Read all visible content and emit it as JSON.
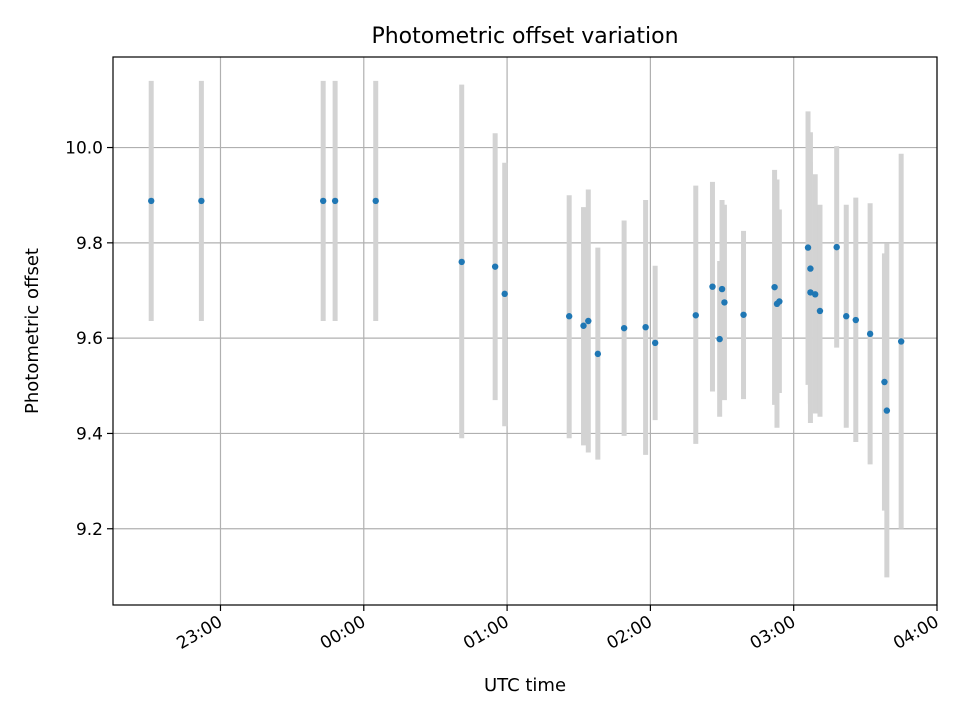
{
  "chart_data": {
    "type": "scatter",
    "title": "Photometric offset variation",
    "xlabel": "UTC time",
    "ylabel": "Photometric offset",
    "grid": true,
    "xlim": [
      "22:15",
      "04:00"
    ],
    "ylim": [
      9.04,
      10.19
    ],
    "xticks": [
      "23:00",
      "00:00",
      "01:00",
      "02:00",
      "03:00",
      "04:00"
    ],
    "yticks": [
      "9.2",
      "9.4",
      "9.6",
      "9.8",
      "10.0"
    ],
    "colors": {
      "marker": "#1f77b4",
      "errorbar": "#d3d3d3",
      "grid": "#b0b0b0"
    },
    "series": [
      {
        "points": [
          {
            "x": "22:31",
            "y": 9.888,
            "lo": 9.636,
            "hi": 10.14
          },
          {
            "x": "22:52",
            "y": 9.888,
            "lo": 9.636,
            "hi": 10.14
          },
          {
            "x": "23:43",
            "y": 9.888,
            "lo": 9.636,
            "hi": 10.14
          },
          {
            "x": "23:48",
            "y": 9.888,
            "lo": 9.636,
            "hi": 10.14
          },
          {
            "x": "00:05",
            "y": 9.888,
            "lo": 9.636,
            "hi": 10.14
          },
          {
            "x": "00:41",
            "y": 9.76,
            "lo": 9.39,
            "hi": 10.132
          },
          {
            "x": "00:55",
            "y": 9.75,
            "lo": 9.47,
            "hi": 10.03
          },
          {
            "x": "00:59",
            "y": 9.693,
            "lo": 9.415,
            "hi": 9.968
          },
          {
            "x": "01:26",
            "y": 9.646,
            "lo": 9.39,
            "hi": 9.9
          },
          {
            "x": "01:32",
            "y": 9.626,
            "lo": 9.375,
            "hi": 9.875
          },
          {
            "x": "01:34",
            "y": 9.636,
            "lo": 9.36,
            "hi": 9.912
          },
          {
            "x": "01:38",
            "y": 9.567,
            "lo": 9.345,
            "hi": 9.79
          },
          {
            "x": "01:49",
            "y": 9.621,
            "lo": 9.395,
            "hi": 9.847
          },
          {
            "x": "01:58",
            "y": 9.623,
            "lo": 9.355,
            "hi": 9.89
          },
          {
            "x": "02:02",
            "y": 9.59,
            "lo": 9.428,
            "hi": 9.752
          },
          {
            "x": "02:19",
            "y": 9.648,
            "lo": 9.378,
            "hi": 9.92
          },
          {
            "x": "02:26",
            "y": 9.708,
            "lo": 9.488,
            "hi": 9.928
          },
          {
            "x": "02:29",
            "y": 9.598,
            "lo": 9.435,
            "hi": 9.762
          },
          {
            "x": "02:30",
            "y": 9.703,
            "lo": 9.478,
            "hi": 9.89
          },
          {
            "x": "02:31",
            "y": 9.675,
            "lo": 9.47,
            "hi": 9.88
          },
          {
            "x": "02:39",
            "y": 9.649,
            "lo": 9.472,
            "hi": 9.825
          },
          {
            "x": "02:52",
            "y": 9.707,
            "lo": 9.46,
            "hi": 9.953
          },
          {
            "x": "02:53",
            "y": 9.672,
            "lo": 9.412,
            "hi": 9.933
          },
          {
            "x": "02:54",
            "y": 9.677,
            "lo": 9.485,
            "hi": 9.87
          },
          {
            "x": "03:06",
            "y": 9.79,
            "lo": 9.502,
            "hi": 10.076
          },
          {
            "x": "03:07",
            "y": 9.696,
            "lo": 9.422,
            "hi": 9.97
          },
          {
            "x": "03:07",
            "y": 9.746,
            "lo": 9.462,
            "hi": 10.032
          },
          {
            "x": "03:09",
            "y": 9.692,
            "lo": 9.442,
            "hi": 9.944
          },
          {
            "x": "03:11",
            "y": 9.657,
            "lo": 9.435,
            "hi": 9.88
          },
          {
            "x": "03:18",
            "y": 9.791,
            "lo": 9.58,
            "hi": 10.003
          },
          {
            "x": "03:22",
            "y": 9.646,
            "lo": 9.412,
            "hi": 9.88
          },
          {
            "x": "03:26",
            "y": 9.638,
            "lo": 9.382,
            "hi": 9.895
          },
          {
            "x": "03:32",
            "y": 9.609,
            "lo": 9.335,
            "hi": 9.883
          },
          {
            "x": "03:38",
            "y": 9.508,
            "lo": 9.238,
            "hi": 9.778
          },
          {
            "x": "03:39",
            "y": 9.448,
            "lo": 9.098,
            "hi": 9.798
          },
          {
            "x": "03:45",
            "y": 9.593,
            "lo": 9.2,
            "hi": 9.987
          }
        ]
      }
    ]
  }
}
